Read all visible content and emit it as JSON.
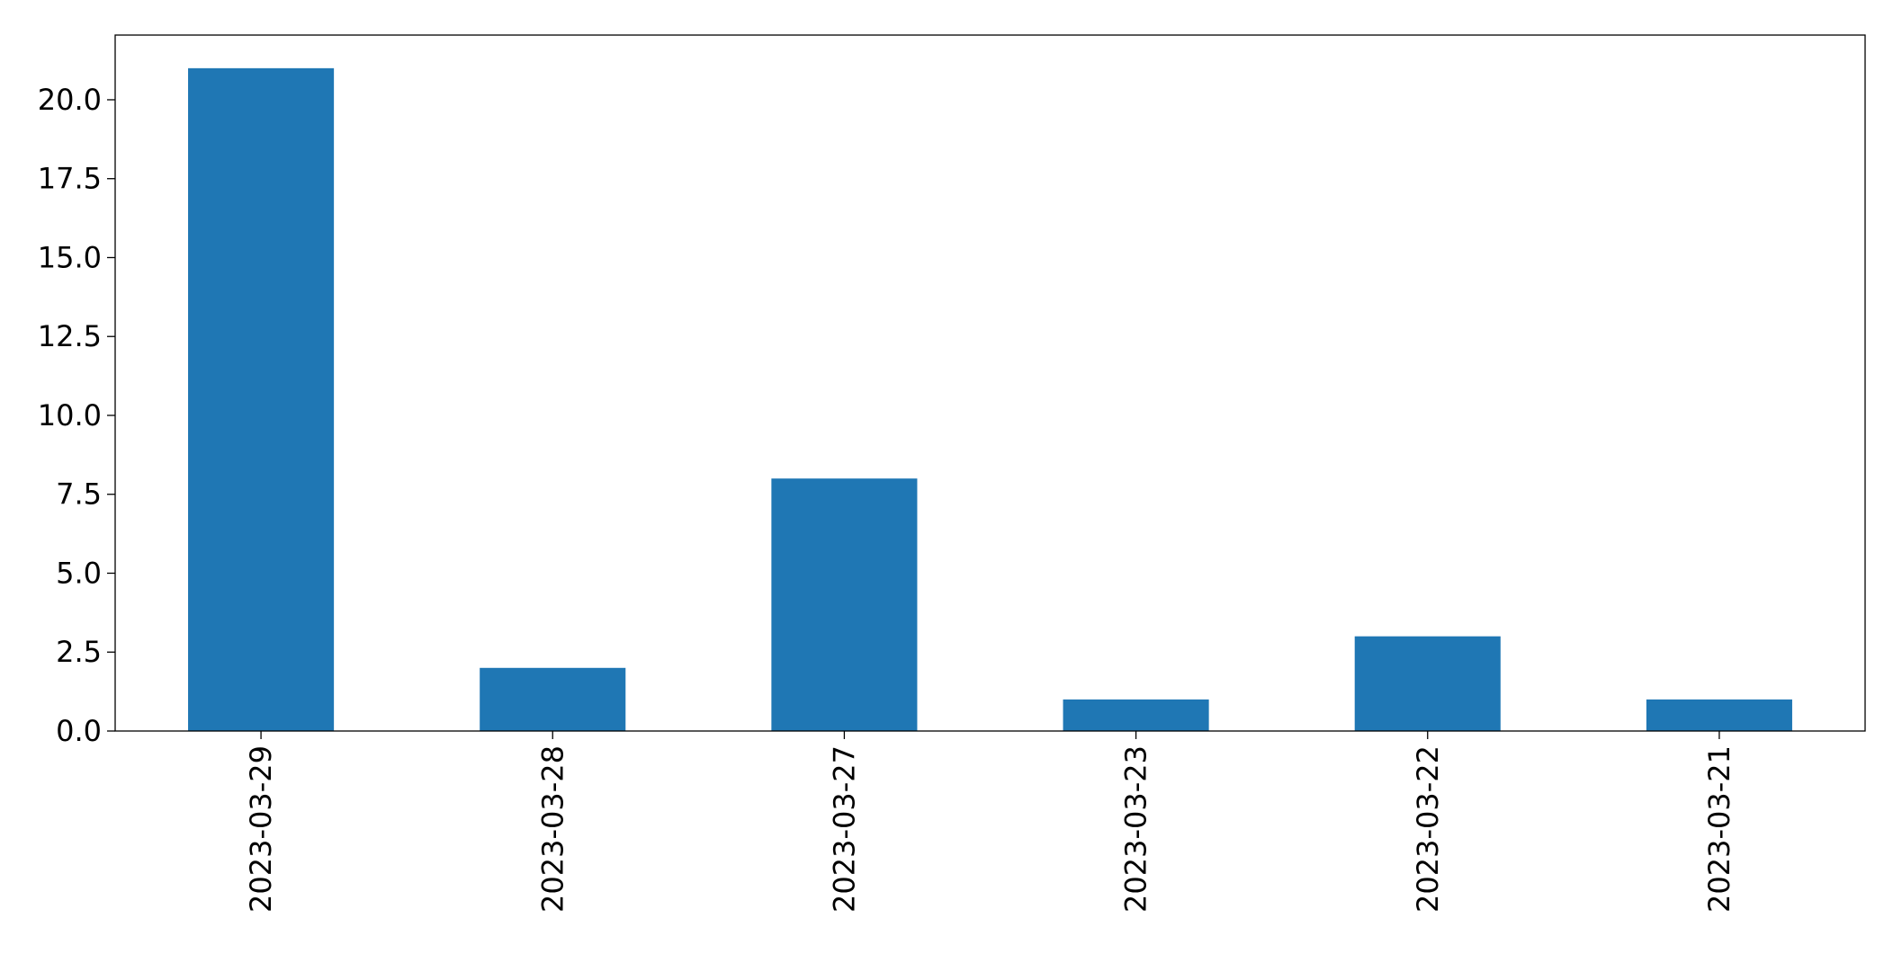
{
  "chart_data": {
    "type": "bar",
    "title": "",
    "xlabel": "",
    "ylabel": "",
    "categories": [
      "2023-03-29",
      "2023-03-28",
      "2023-03-27",
      "2023-03-23",
      "2023-03-22",
      "2023-03-21"
    ],
    "series": [
      {
        "values": [
          21,
          2,
          8,
          1,
          3,
          1
        ]
      }
    ],
    "ylim": [
      0,
      22.05
    ],
    "yticks": [
      0.0,
      2.5,
      5.0,
      7.5,
      10.0,
      12.5,
      15.0,
      17.5,
      20.0
    ],
    "ytick_labels": [
      "0.0",
      "2.5",
      "5.0",
      "7.5",
      "10.0",
      "12.5",
      "15.0",
      "17.5",
      "20.0"
    ],
    "xtick_rotation": "vertical",
    "grid": false,
    "legend": "none",
    "bar_color": "#1f77b4",
    "axis_color": "#000000"
  }
}
